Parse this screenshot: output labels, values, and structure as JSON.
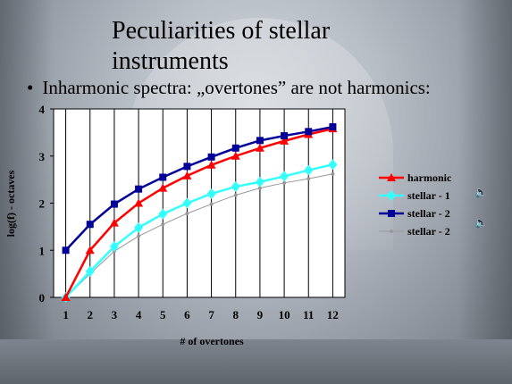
{
  "slide": {
    "title": "Peculiarities of stellar instruments",
    "bullet_text": "Inharmonic spectra: „overtones” are not harmonics:"
  },
  "chart_data": {
    "type": "line",
    "x": [
      1,
      2,
      3,
      4,
      5,
      6,
      7,
      8,
      9,
      10,
      11,
      12
    ],
    "xlabel": "# of overtones",
    "ylabel": "log(f) - octaves",
    "xlim": [
      0.5,
      12.5
    ],
    "ylim": [
      0,
      4
    ],
    "yticks": [
      0,
      1,
      2,
      3,
      4
    ],
    "grid": "vertical",
    "legend": "right",
    "series": [
      {
        "name": "harmonic",
        "color": "#ff0000",
        "marker": "triangle",
        "values": [
          0,
          1,
          1.58,
          2,
          2.32,
          2.58,
          2.81,
          3,
          3.17,
          3.32,
          3.46,
          3.58
        ]
      },
      {
        "name": "stellar - 1",
        "color": "#33ffff",
        "marker": "diamond",
        "values": [
          0,
          0.55,
          1.08,
          1.48,
          1.77,
          2.0,
          2.2,
          2.35,
          2.45,
          2.57,
          2.7,
          2.82
        ]
      },
      {
        "name": "stellar - 2",
        "color": "#000099",
        "marker": "square",
        "values": [
          1,
          1.55,
          1.98,
          2.3,
          2.55,
          2.78,
          2.98,
          3.17,
          3.33,
          3.43,
          3.52,
          3.62
        ]
      },
      {
        "name": "stellar - 2",
        "color": "#999999",
        "marker": "dot",
        "values": [
          0,
          0.5,
          0.98,
          1.3,
          1.55,
          1.78,
          1.98,
          2.17,
          2.32,
          2.43,
          2.52,
          2.62
        ]
      }
    ]
  },
  "icons": {
    "speaker_1": "speaker-icon",
    "speaker_2": "speaker-icon"
  }
}
